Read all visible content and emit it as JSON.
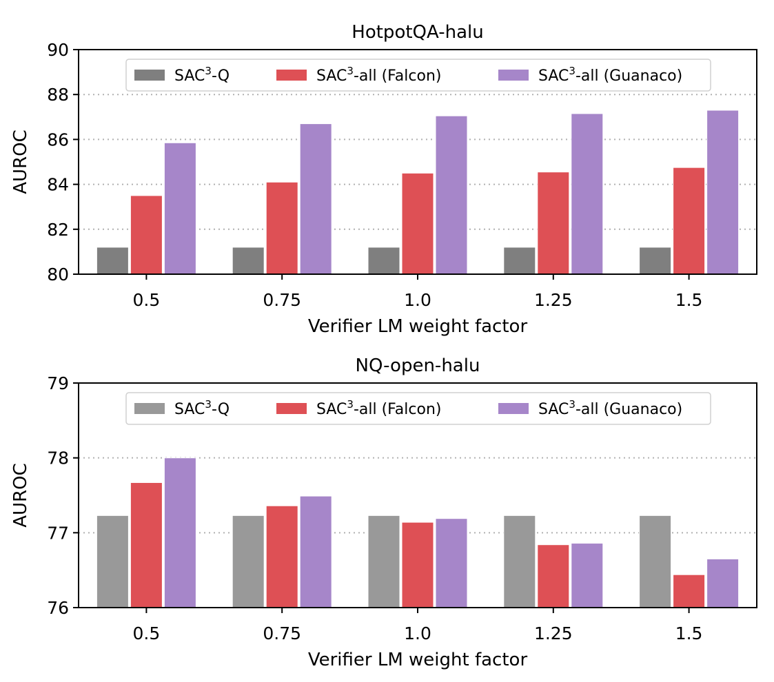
{
  "chart_data": [
    {
      "type": "bar",
      "title": "HotpotQA-halu",
      "xlabel": "Verifier LM weight factor",
      "ylabel": "AUROC",
      "categories": [
        "0.5",
        "0.75",
        "1.0",
        "1.25",
        "1.5"
      ],
      "ylim": [
        80,
        90
      ],
      "yticks": [
        "80",
        "82",
        "84",
        "86",
        "88",
        "90"
      ],
      "grid": "y dotted",
      "legend_position": "top",
      "series": [
        {
          "name": "SAC3-Q",
          "label_main": "SAC",
          "label_sup": "3",
          "label_tail": "-Q",
          "color": "#7f7f7f",
          "values": [
            81.2,
            81.2,
            81.2,
            81.2,
            81.2
          ]
        },
        {
          "name": "SAC3-all (Falcon)",
          "label_main": "SAC",
          "label_sup": "3",
          "label_tail": "-all (Falcon)",
          "color": "#de5055",
          "values": [
            83.5,
            84.1,
            84.5,
            84.55,
            84.75
          ]
        },
        {
          "name": "SAC3-all (Guanaco)",
          "label_main": "SAC",
          "label_sup": "3",
          "label_tail": "-all (Guanaco)",
          "color": "#a686c9",
          "values": [
            85.85,
            86.7,
            87.05,
            87.15,
            87.3
          ]
        }
      ]
    },
    {
      "type": "bar",
      "title": "NQ-open-halu",
      "xlabel": "Verifier LM weight factor",
      "ylabel": "AUROC",
      "categories": [
        "0.5",
        "0.75",
        "1.0",
        "1.25",
        "1.5"
      ],
      "ylim": [
        76,
        79
      ],
      "yticks": [
        "76",
        "77",
        "78",
        "79"
      ],
      "grid": "y dotted",
      "legend_position": "top",
      "series": [
        {
          "name": "SAC3-Q",
          "label_main": "SAC",
          "label_sup": "3",
          "label_tail": "-Q",
          "color": "#999999",
          "values": [
            77.23,
            77.23,
            77.23,
            77.23,
            77.23
          ]
        },
        {
          "name": "SAC3-all (Falcon)",
          "label_main": "SAC",
          "label_sup": "3",
          "label_tail": "-all (Falcon)",
          "color": "#de5055",
          "values": [
            77.67,
            77.36,
            77.14,
            76.84,
            76.44
          ]
        },
        {
          "name": "SAC3-all (Guanaco)",
          "label_main": "SAC",
          "label_sup": "3",
          "label_tail": "-all (Guanaco)",
          "color": "#a686c9",
          "values": [
            78.0,
            77.49,
            77.19,
            76.86,
            76.65
          ]
        }
      ]
    }
  ]
}
